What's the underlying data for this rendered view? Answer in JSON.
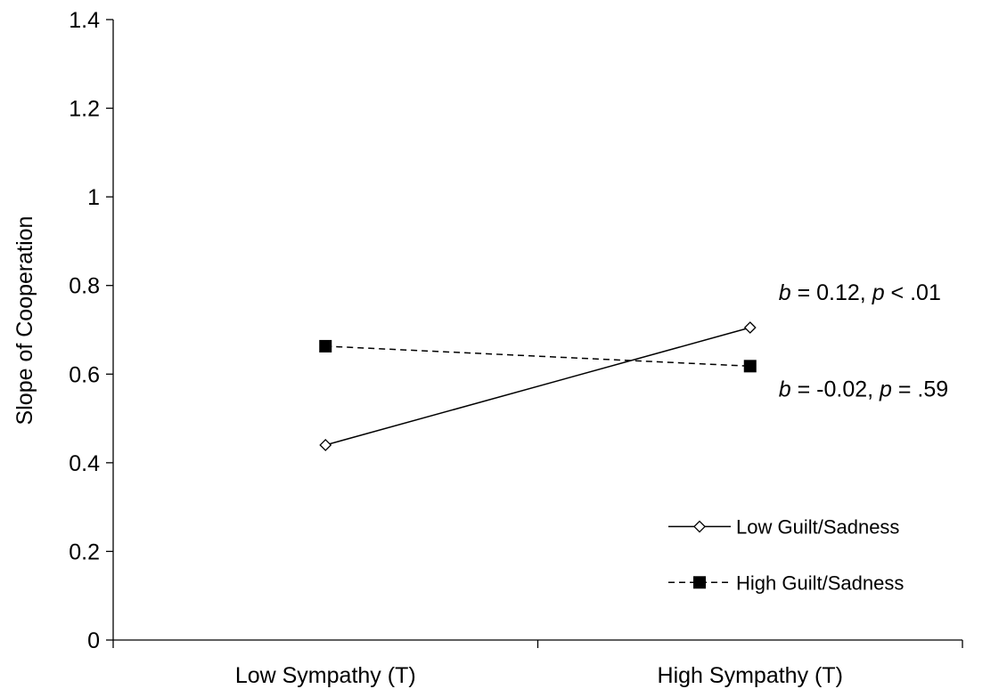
{
  "chart_data": {
    "type": "line",
    "ylabel": "Slope of Cooperation",
    "xlabel": "",
    "ylim": [
      0,
      1.4
    ],
    "yticks": [
      0,
      0.2,
      0.4,
      0.6,
      0.8,
      1,
      1.2,
      1.4
    ],
    "ytick_labels": [
      "0",
      "0.2",
      "0.4",
      "0.6",
      "0.8",
      "1",
      "1.2",
      "1.4"
    ],
    "categories": [
      "Low Sympathy (T)",
      "High Sympathy (T)"
    ],
    "grid": false,
    "legend_position": "bottom-right",
    "series": [
      {
        "name": "Low Guilt/Sadness",
        "values": [
          0.44,
          0.705
        ],
        "line_style": "solid",
        "marker": "open-diamond"
      },
      {
        "name": "High Guilt/Sadness",
        "values": [
          0.663,
          0.618
        ],
        "line_style": "dashed",
        "marker": "filled-square"
      }
    ],
    "annotations": [
      {
        "series": 0,
        "b_symbol": "b",
        "b_text": " = 0.12, ",
        "p_symbol": "p",
        "p_text": " < .01"
      },
      {
        "series": 1,
        "b_symbol": "b",
        "b_text": " = -0.02, ",
        "p_symbol": "p",
        "p_text": " = .59"
      }
    ]
  },
  "colors": {
    "line": "#000000",
    "background": "#ffffff"
  }
}
